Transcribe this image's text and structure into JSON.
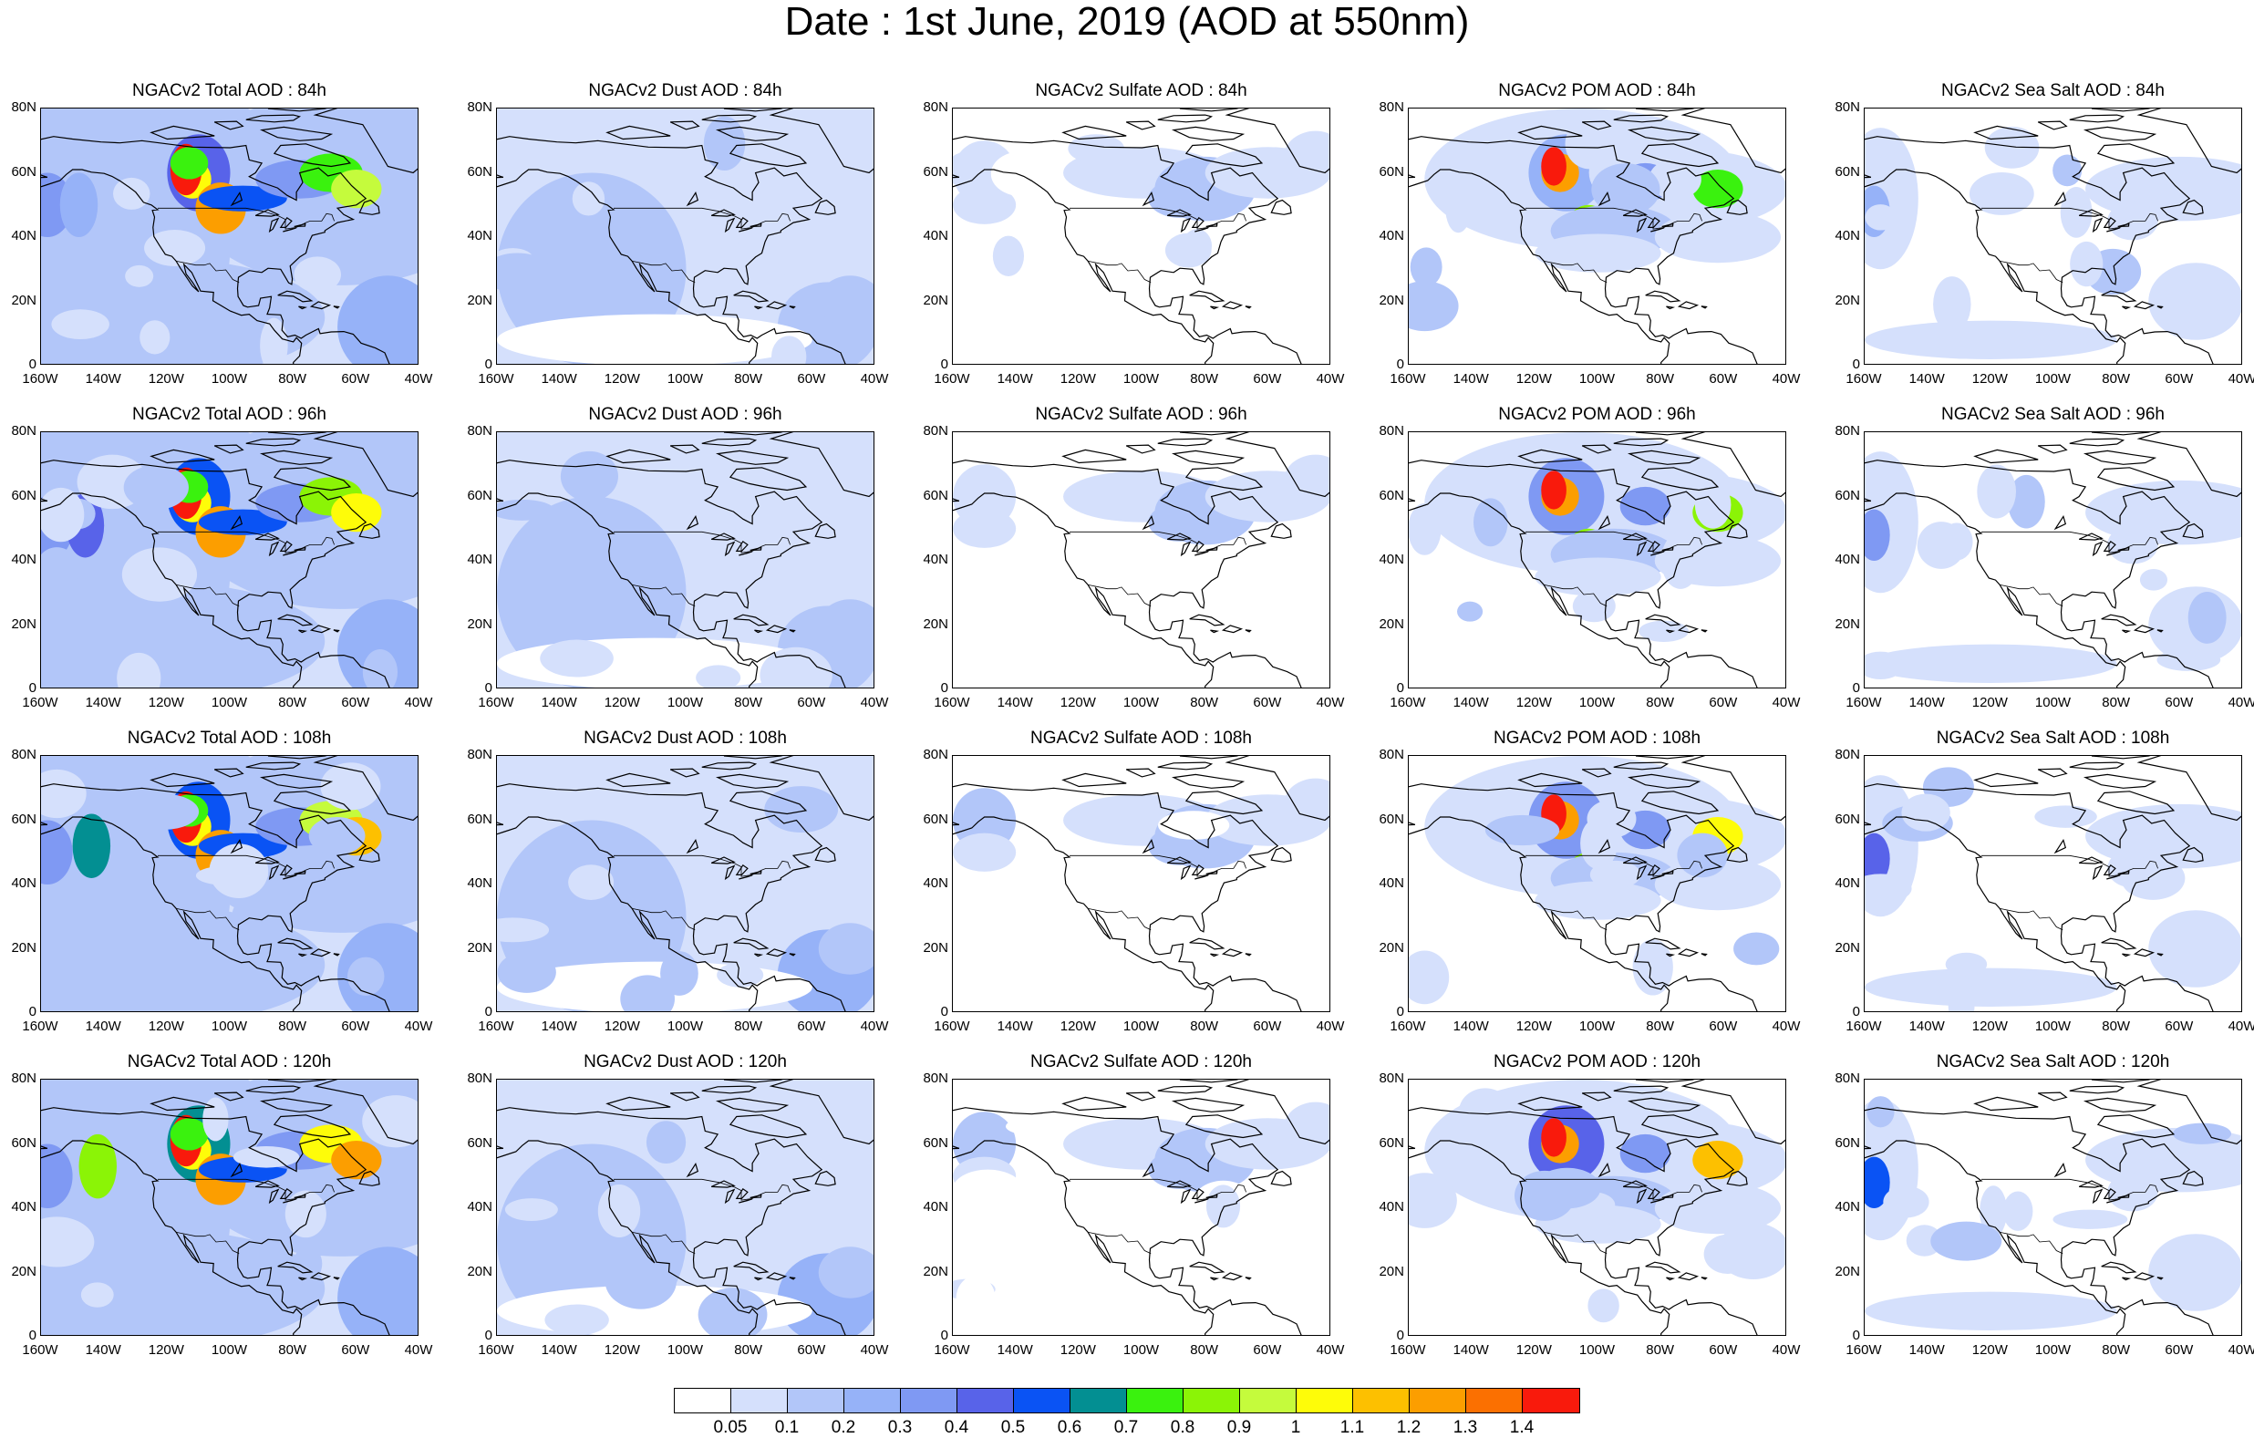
{
  "title": "Date : 1st June, 2019 (AOD at 550nm)",
  "lat_ticks": [
    "80N",
    "60N",
    "40N",
    "20N",
    "0"
  ],
  "lon_ticks": [
    "160W",
    "140W",
    "120W",
    "100W",
    "80W",
    "60W",
    "40W"
  ],
  "panels": [
    [
      "NGACv2 Total AOD : 84h",
      "NGACv2 Dust AOD : 84h",
      "NGACv2 Sulfate AOD : 84h",
      "NGACv2 POM AOD : 84h",
      "NGACv2 Sea Salt AOD : 84h"
    ],
    [
      "NGACv2 Total AOD : 96h",
      "NGACv2 Dust AOD : 96h",
      "NGACv2 Sulfate AOD : 96h",
      "NGACv2 POM AOD : 96h",
      "NGACv2 Sea Salt AOD : 96h"
    ],
    [
      "NGACv2 Total AOD : 108h",
      "NGACv2 Dust AOD : 108h",
      "NGACv2 Sulfate AOD : 108h",
      "NGACv2 POM AOD : 108h",
      "NGACv2 Sea Salt AOD : 108h"
    ],
    [
      "NGACv2 Total AOD : 120h",
      "NGACv2 Dust AOD : 120h",
      "NGACv2 Sulfate AOD : 120h",
      "NGACv2 POM AOD : 120h",
      "NGACv2 Sea Salt  AOD : 120h"
    ]
  ],
  "colorbar": {
    "labels": [
      "0.05",
      "0.1",
      "0.2",
      "0.3",
      "0.4",
      "0.5",
      "0.6",
      "0.7",
      "0.8",
      "0.9",
      "1",
      "1.1",
      "1.2",
      "1.3",
      "1.4"
    ],
    "colors": [
      "#ffffff",
      "#d5e0fc",
      "#b2c6f9",
      "#96b2f8",
      "#7f99f3",
      "#5863e9",
      "#0a53f4",
      "#038f92",
      "#3af20e",
      "#8bf406",
      "#c5fb3c",
      "#fefc09",
      "#fdc000",
      "#fc9e00",
      "#fb7001",
      "#f91a0c"
    ]
  }
}
